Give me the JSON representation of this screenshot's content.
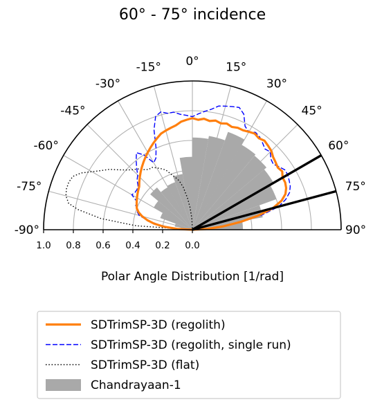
{
  "chart_data": {
    "type": "polar-semicircle",
    "title": "60° - 75° incidence",
    "xlabel": "Polar Angle Distribution [1/rad]",
    "rlim": [
      0,
      1.0
    ],
    "angle_range_deg": [
      -90,
      90
    ],
    "angle_ticks": [
      {
        "deg": -90,
        "label": "-90°"
      },
      {
        "deg": -75,
        "label": "-75°"
      },
      {
        "deg": -60,
        "label": "-60°"
      },
      {
        "deg": -45,
        "label": "-45°"
      },
      {
        "deg": -30,
        "label": "-30°"
      },
      {
        "deg": -15,
        "label": "-15°"
      },
      {
        "deg": 0,
        "label": "0°"
      },
      {
        "deg": 15,
        "label": "15°"
      },
      {
        "deg": 30,
        "label": "30°"
      },
      {
        "deg": 45,
        "label": "45°"
      },
      {
        "deg": 60,
        "label": "60°"
      },
      {
        "deg": 75,
        "label": "75°"
      },
      {
        "deg": 90,
        "label": "90°"
      }
    ],
    "radial_ticks": [
      {
        "value": 1.0,
        "label": "1.0"
      },
      {
        "value": 0.8,
        "label": "0.8"
      },
      {
        "value": 0.6,
        "label": "0.6"
      },
      {
        "value": 0.4,
        "label": "0.4"
      },
      {
        "value": 0.2,
        "label": "0.2"
      },
      {
        "value": 0.0,
        "label": "0.0"
      }
    ],
    "grid": true,
    "incidence_lines_deg": [
      60,
      75
    ],
    "colors": {
      "regolith": "#ff7f0e",
      "single_run": "#0000ff",
      "flat": "#000000",
      "chandrayaan": "#a9a9a9",
      "incidence": "#000000",
      "grid": "#b0b0b0"
    },
    "legend": {
      "position": "lower-center",
      "entries": [
        {
          "key": "regolith",
          "label": "SDTrimSP-3D (regolith)"
        },
        {
          "key": "single_run",
          "label": "SDTrimSP-3D (regolith, single run)"
        },
        {
          "key": "flat",
          "label": "SDTrimSP-3D (flat)"
        },
        {
          "key": "chandrayaan",
          "label": "Chandrayaan-1"
        }
      ]
    },
    "bars": {
      "name": "Chandrayaan-1",
      "bin_edges_deg": [
        -90,
        -80,
        -70,
        -60,
        -50,
        -40,
        -30,
        -20,
        -10,
        0,
        10,
        20,
        30,
        40,
        50,
        60,
        70,
        80,
        90
      ],
      "values": [
        0.08,
        0.12,
        0.23,
        0.3,
        0.37,
        0.33,
        0.34,
        0.38,
        0.49,
        0.62,
        0.64,
        0.7,
        0.66,
        0.65,
        0.63,
        0.6,
        0.48,
        0.34
      ]
    },
    "series": [
      {
        "name": "SDTrimSP-3D (regolith)",
        "key": "regolith",
        "points": [
          [
            -90,
            0
          ],
          [
            -87,
            0.1
          ],
          [
            -84,
            0.19
          ],
          [
            -81,
            0.26
          ],
          [
            -78,
            0.31
          ],
          [
            -75,
            0.35
          ],
          [
            -72,
            0.38
          ],
          [
            -69,
            0.4
          ],
          [
            -66,
            0.41
          ],
          [
            -63,
            0.42
          ],
          [
            -60,
            0.43
          ],
          [
            -57,
            0.44
          ],
          [
            -54,
            0.45
          ],
          [
            -51,
            0.46
          ],
          [
            -48,
            0.48
          ],
          [
            -45,
            0.5
          ],
          [
            -42,
            0.52
          ],
          [
            -39,
            0.54
          ],
          [
            -36,
            0.56
          ],
          [
            -33,
            0.58
          ],
          [
            -30,
            0.6
          ],
          [
            -27,
            0.62
          ],
          [
            -24,
            0.64
          ],
          [
            -21,
            0.66
          ],
          [
            -18,
            0.68
          ],
          [
            -15,
            0.69
          ],
          [
            -12,
            0.7
          ],
          [
            -9,
            0.71
          ],
          [
            -6,
            0.73
          ],
          [
            -3,
            0.74
          ],
          [
            0,
            0.75
          ],
          [
            3,
            0.74
          ],
          [
            6,
            0.75
          ],
          [
            9,
            0.74
          ],
          [
            12,
            0.75
          ],
          [
            15,
            0.74
          ],
          [
            18,
            0.75
          ],
          [
            21,
            0.74
          ],
          [
            24,
            0.75
          ],
          [
            27,
            0.75
          ],
          [
            30,
            0.76
          ],
          [
            33,
            0.77
          ],
          [
            36,
            0.76
          ],
          [
            39,
            0.77
          ],
          [
            42,
            0.76
          ],
          [
            45,
            0.75
          ],
          [
            48,
            0.73
          ],
          [
            51,
            0.72
          ],
          [
            54,
            0.71
          ],
          [
            57,
            0.72
          ],
          [
            60,
            0.7
          ],
          [
            63,
            0.7
          ],
          [
            66,
            0.69
          ],
          [
            69,
            0.67
          ],
          [
            72,
            0.63
          ],
          [
            75,
            0.56
          ],
          [
            78,
            0.45
          ],
          [
            81,
            0.32
          ],
          [
            84,
            0.2
          ],
          [
            87,
            0.1
          ],
          [
            90,
            0
          ]
        ]
      },
      {
        "name": "SDTrimSP-3D (regolith, single run)",
        "key": "single_run",
        "points": [
          [
            -90,
            0
          ],
          [
            -87,
            0.09
          ],
          [
            -84,
            0.17
          ],
          [
            -81,
            0.24
          ],
          [
            -78,
            0.31
          ],
          [
            -75,
            0.37
          ],
          [
            -72,
            0.39
          ],
          [
            -69,
            0.4
          ],
          [
            -66,
            0.42
          ],
          [
            -63,
            0.42
          ],
          [
            -60,
            0.47
          ],
          [
            -57,
            0.46
          ],
          [
            -54,
            0.46
          ],
          [
            -51,
            0.47
          ],
          [
            -48,
            0.5
          ],
          [
            -45,
            0.52
          ],
          [
            -42,
            0.56
          ],
          [
            -39,
            0.6
          ],
          [
            -36,
            0.64
          ],
          [
            -33,
            0.6
          ],
          [
            -30,
            0.52
          ],
          [
            -27,
            0.54
          ],
          [
            -24,
            0.6
          ],
          [
            -21,
            0.72
          ],
          [
            -18,
            0.8
          ],
          [
            -15,
            0.82
          ],
          [
            -12,
            0.8
          ],
          [
            -9,
            0.8
          ],
          [
            -6,
            0.78
          ],
          [
            -3,
            0.77
          ],
          [
            0,
            0.76
          ],
          [
            3,
            0.78
          ],
          [
            6,
            0.8
          ],
          [
            9,
            0.82
          ],
          [
            12,
            0.85
          ],
          [
            15,
            0.86
          ],
          [
            18,
            0.87
          ],
          [
            21,
            0.88
          ],
          [
            24,
            0.85
          ],
          [
            27,
            0.78
          ],
          [
            30,
            0.76
          ],
          [
            33,
            0.78
          ],
          [
            36,
            0.77
          ],
          [
            39,
            0.75
          ],
          [
            42,
            0.73
          ],
          [
            45,
            0.74
          ],
          [
            48,
            0.71
          ],
          [
            51,
            0.7
          ],
          [
            54,
            0.72
          ],
          [
            57,
            0.74
          ],
          [
            60,
            0.74
          ],
          [
            63,
            0.73
          ],
          [
            66,
            0.72
          ],
          [
            69,
            0.7
          ],
          [
            72,
            0.66
          ],
          [
            75,
            0.6
          ],
          [
            78,
            0.48
          ],
          [
            81,
            0.34
          ],
          [
            84,
            0.22
          ],
          [
            87,
            0.11
          ],
          [
            90,
            0
          ]
        ]
      },
      {
        "name": "SDTrimSP-3D (flat)",
        "key": "flat",
        "points": [
          [
            -90,
            0
          ],
          [
            -86,
            0.38
          ],
          [
            -83,
            0.62
          ],
          [
            -80,
            0.78
          ],
          [
            -78,
            0.85
          ],
          [
            -75,
            0.88
          ],
          [
            -72,
            0.89
          ],
          [
            -69,
            0.89
          ],
          [
            -66,
            0.88
          ],
          [
            -63,
            0.84
          ],
          [
            -60,
            0.78
          ],
          [
            -57,
            0.73
          ],
          [
            -54,
            0.69
          ],
          [
            -51,
            0.64
          ],
          [
            -48,
            0.6
          ],
          [
            -45,
            0.57
          ],
          [
            -42,
            0.55
          ],
          [
            -39,
            0.52
          ],
          [
            -36,
            0.5
          ],
          [
            -33,
            0.5
          ],
          [
            -30,
            0.48
          ],
          [
            -27,
            0.46
          ],
          [
            -24,
            0.44
          ],
          [
            -21,
            0.4
          ],
          [
            -18,
            0.37
          ],
          [
            -15,
            0.34
          ],
          [
            -12,
            0.29
          ],
          [
            -9,
            0.22
          ],
          [
            -6,
            0.15
          ],
          [
            -3,
            0.08
          ],
          [
            0,
            0
          ]
        ]
      }
    ]
  }
}
